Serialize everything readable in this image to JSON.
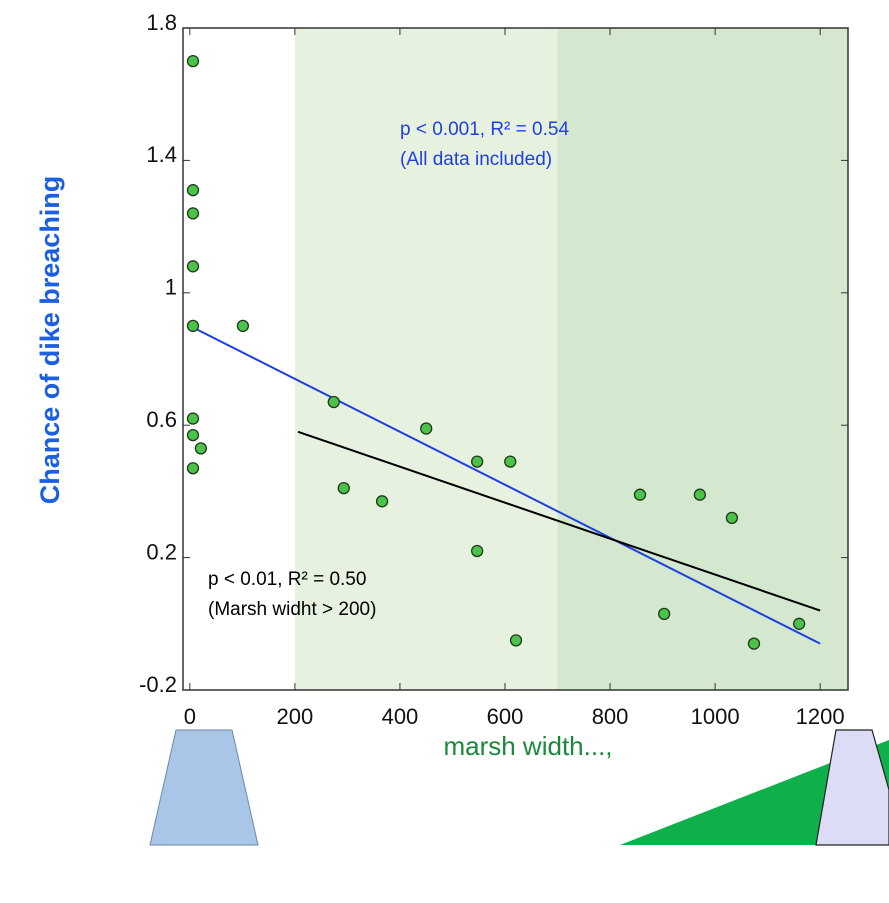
{
  "chart_data": {
    "type": "scatter",
    "y_label": "Chance of dike breaching",
    "x_label": "marsh width...,",
    "x": [
      6,
      6,
      6,
      6,
      6,
      101,
      6,
      6,
      21,
      6,
      274,
      293,
      366,
      450,
      547,
      610,
      547,
      621,
      857,
      971,
      1032,
      903,
      1074,
      1160
    ],
    "values": [
      1.7,
      1.31,
      1.24,
      1.08,
      0.9,
      0.9,
      0.62,
      0.57,
      0.53,
      0.47,
      0.67,
      0.41,
      0.37,
      0.59,
      0.49,
      0.49,
      0.22,
      -0.05,
      0.39,
      0.39,
      0.32,
      0.03,
      -0.06,
      0.0
    ],
    "color": "#4cc24a",
    "xlim": [
      -13,
      1253
    ],
    "ylim": [
      -0.2,
      1.8
    ],
    "xticks": [
      0,
      200,
      400,
      600,
      800,
      1000,
      1200
    ],
    "yticks": [
      -0.2,
      0.2,
      0.6,
      1,
      1.4,
      1.8
    ],
    "shaded_regions": [
      {
        "from": 200,
        "to": 700,
        "color": "#e6f1e0"
      },
      {
        "from": 700,
        "to": 1253,
        "color": "#d4e8d0"
      }
    ],
    "fit_lines": [
      {
        "color": "#1f3fe0",
        "x": [
          0,
          1200
        ],
        "values": [
          0.9,
          -0.06
        ],
        "label": [
          "p < 0.001, R² = 0.54",
          "(All data included)"
        ]
      },
      {
        "color": "#000000",
        "x": [
          206,
          1200
        ],
        "values": [
          0.58,
          0.04
        ],
        "label": [
          "p < 0.01, R² = 0.50",
          "(Marsh widht > 200)"
        ]
      }
    ]
  }
}
